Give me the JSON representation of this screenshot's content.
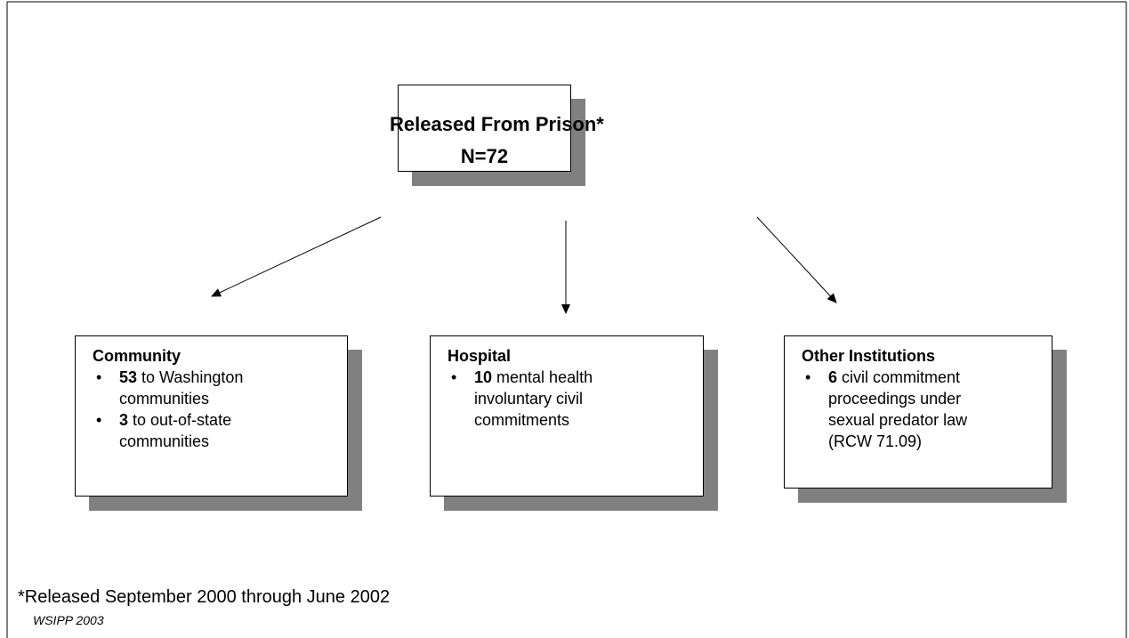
{
  "root": {
    "title": "Released From Prison*",
    "count": "N=72"
  },
  "nodes": [
    {
      "title": "Community",
      "items": [
        {
          "bold": "53",
          "text": " to Washington communities"
        },
        {
          "bold": "3",
          "text": " to out-of-state communities"
        }
      ]
    },
    {
      "title": "Hospital",
      "items": [
        {
          "bold": "10",
          "text": " mental health involuntary civil commitments"
        }
      ]
    },
    {
      "title": "Other Institutions",
      "items": [
        {
          "bold": "6",
          "text": " civil commitment proceedings under sexual predator law (RCW 71.09)"
        }
      ]
    }
  ],
  "footnote": "*Released September 2000 through June 2002",
  "source": "WSIPP 2003"
}
